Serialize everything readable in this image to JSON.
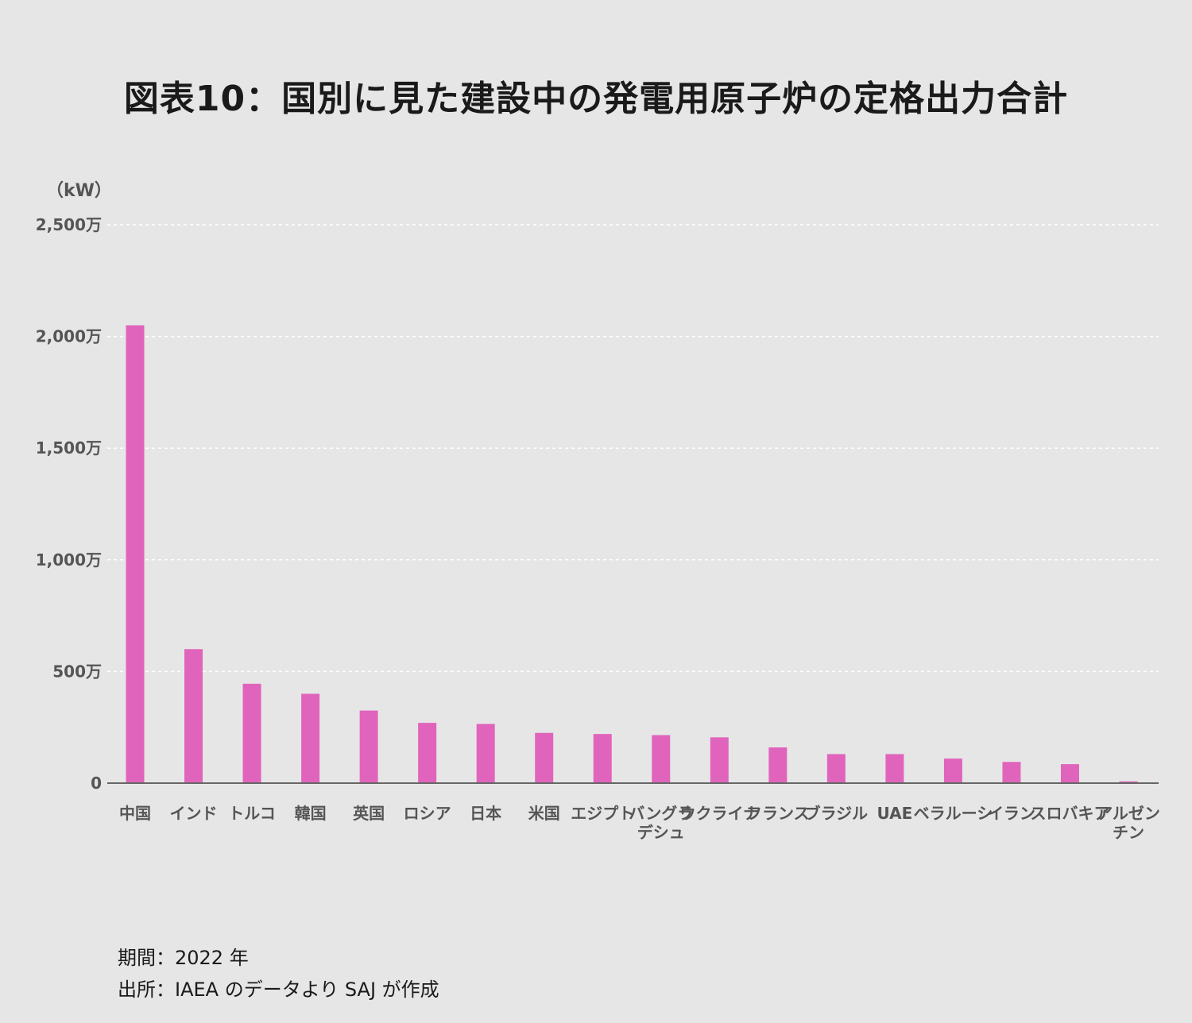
{
  "title": "図表10：国別に見た建設中の発電用原子炉の定格出力合計",
  "chart_data": {
    "type": "bar",
    "ylabel": "（kW）",
    "ylim": [
      0,
      25000000
    ],
    "yticks": [
      {
        "value": 0,
        "label": "0"
      },
      {
        "value": 5000000,
        "label": "500万"
      },
      {
        "value": 10000000,
        "label": "1,000万"
      },
      {
        "value": 15000000,
        "label": "1,500万"
      },
      {
        "value": 20000000,
        "label": "2,000万"
      },
      {
        "value": 25000000,
        "label": "2,500万"
      }
    ],
    "grid": true,
    "bar_color": "#e064bc",
    "categories": [
      [
        "中国"
      ],
      [
        "インド"
      ],
      [
        "トルコ"
      ],
      [
        "韓国"
      ],
      [
        "英国"
      ],
      [
        "ロシア"
      ],
      [
        "日本"
      ],
      [
        "米国"
      ],
      [
        "エジプト"
      ],
      [
        "バングラ",
        "デシュ"
      ],
      [
        "ウクライナ"
      ],
      [
        "フランス"
      ],
      [
        "ブラジル"
      ],
      [
        "UAE"
      ],
      [
        "ベラルーシ"
      ],
      [
        "イラン"
      ],
      [
        "スロバキア"
      ],
      [
        "アルゼン",
        "チン"
      ]
    ],
    "values": [
      20500000,
      6000000,
      4450000,
      4000000,
      3250000,
      2700000,
      2650000,
      2250000,
      2200000,
      2150000,
      2050000,
      1600000,
      1300000,
      1300000,
      1100000,
      950000,
      850000,
      80000
    ]
  },
  "footer": {
    "period": "期間：2022 年",
    "source": "出所：IAEA のデータより SAJ が作成"
  }
}
